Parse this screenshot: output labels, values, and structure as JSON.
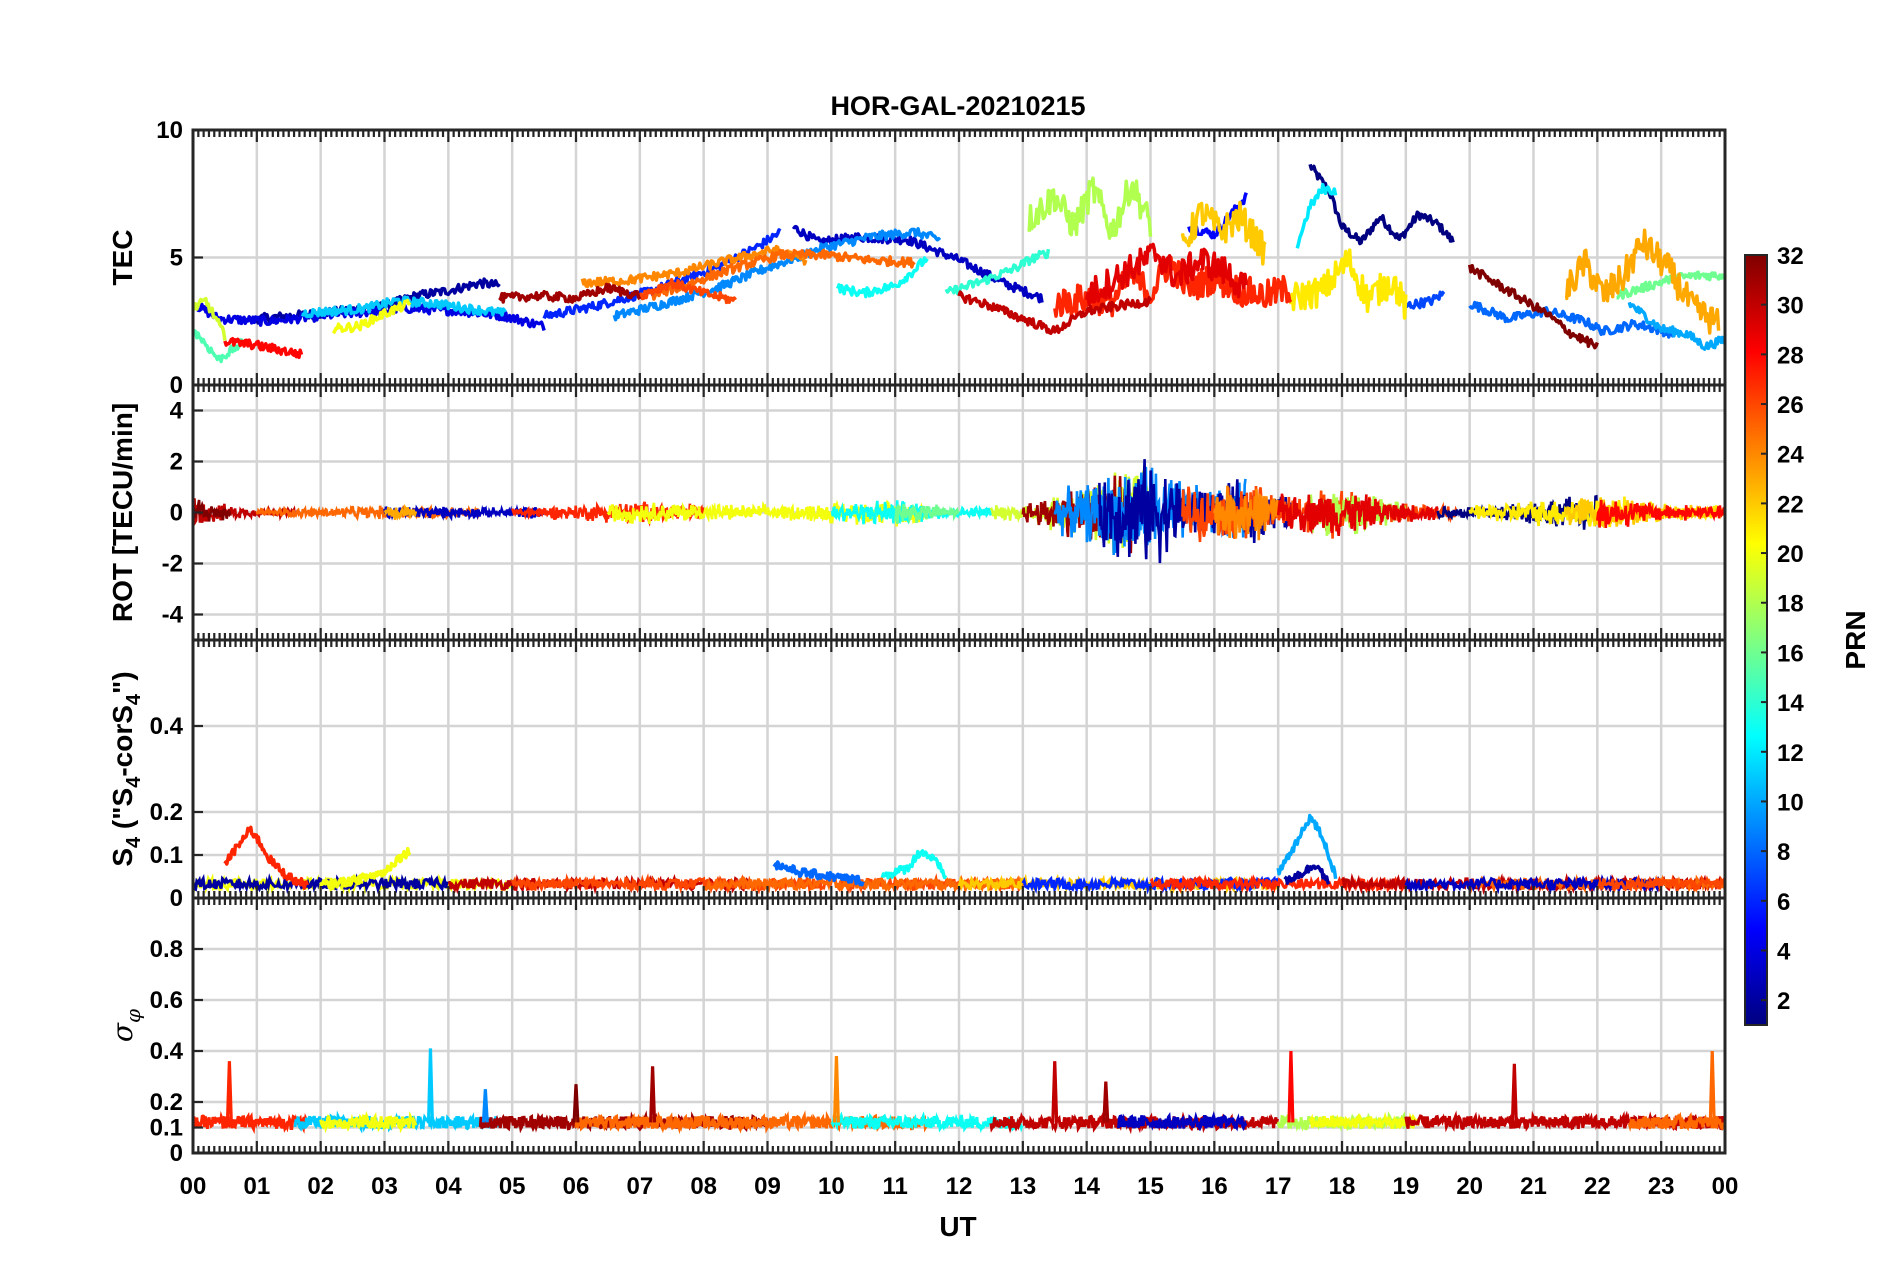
{
  "title": "HOR-GAL-20210215",
  "x_axis": {
    "label": "UT",
    "tick_labels": [
      "00",
      "01",
      "02",
      "03",
      "04",
      "05",
      "06",
      "07",
      "08",
      "09",
      "10",
      "11",
      "12",
      "13",
      "14",
      "15",
      "16",
      "17",
      "18",
      "19",
      "20",
      "21",
      "22",
      "23",
      "00"
    ],
    "range_hours": [
      0,
      24
    ]
  },
  "colorbar": {
    "label": "PRN",
    "range": [
      1,
      32
    ],
    "tick_labels": [
      "2",
      "4",
      "6",
      "8",
      "10",
      "12",
      "14",
      "16",
      "18",
      "20",
      "22",
      "24",
      "26",
      "28",
      "30",
      "32"
    ],
    "colormap": "jet",
    "colors": [
      "#00008f",
      "#0000ff",
      "#0080ff",
      "#00ffff",
      "#80ff80",
      "#ffff00",
      "#ff8000",
      "#ff0000",
      "#800000"
    ]
  },
  "panels": [
    {
      "id": "tec",
      "ylabel": "TEC",
      "ylim": [
        0,
        10
      ],
      "tick_labels": [
        "0",
        "5",
        "10"
      ]
    },
    {
      "id": "rot",
      "ylabel": "ROT [TECU/min]",
      "ylim": [
        -5,
        5
      ],
      "tick_labels": [
        "-4",
        "-2",
        "0",
        "2",
        "4"
      ]
    },
    {
      "id": "s4",
      "ylabel": "S4 (\"S4-corS4\")",
      "ylabel_parts": {
        "main": "S",
        "sub": "4",
        "paren": " (\"S",
        "sub2": "4",
        "mid": "-corS",
        "sub3": "4",
        "end": "\")"
      },
      "ylim": [
        0,
        0.6
      ],
      "tick_labels": [
        "0",
        "0.1",
        "0.2",
        "0.4"
      ]
    },
    {
      "id": "sigphi",
      "ylabel": "σφ",
      "ylabel_parts": {
        "main": "σ",
        "sub": "φ"
      },
      "ylim": [
        0,
        1
      ],
      "tick_labels": [
        "0",
        "0.1",
        "0.2",
        "0.4",
        "0.6",
        "0.8"
      ]
    }
  ],
  "chart_data": [
    {
      "type": "line",
      "title": "HOR-GAL-20210215",
      "xlabel": "UT",
      "ylabel": "TEC",
      "xlim": [
        0,
        24
      ],
      "ylim": [
        0,
        10
      ],
      "grid": true,
      "series": [
        {
          "prn": 1,
          "x": [
            17.5,
            17.8,
            18.0,
            18.3,
            18.6,
            18.9,
            19.2,
            19.5,
            19.75
          ],
          "y": [
            8.6,
            7.6,
            6.2,
            5.6,
            6.6,
            5.7,
            6.7,
            6.3,
            5.6
          ]
        },
        {
          "prn": 2,
          "x": [
            1.0,
            2.0,
            3.0,
            3.5,
            4.0,
            4.5,
            4.8
          ],
          "y": [
            2.6,
            2.8,
            3.1,
            3.5,
            3.7,
            4.0,
            3.9
          ]
        },
        {
          "prn": 3,
          "x": [
            9.4,
            9.8,
            10.4,
            11.2,
            12.0,
            12.7,
            13.3
          ],
          "y": [
            6.2,
            5.6,
            5.8,
            5.7,
            4.9,
            4.0,
            3.4
          ]
        },
        {
          "prn": 4,
          "x": [
            0.0,
            0.4,
            1.2,
            2.4,
            3.4,
            4.2,
            4.9,
            5.5
          ],
          "y": [
            3.2,
            2.6,
            2.5,
            2.8,
            3.0,
            2.9,
            2.7,
            2.3
          ]
        },
        {
          "prn": 5,
          "x": [
            15.6,
            16.0,
            16.3,
            16.5
          ],
          "y": [
            6.2,
            5.9,
            6.8,
            7.4
          ]
        },
        {
          "prn": 6,
          "x": [
            5.5,
            6.3,
            7.2,
            8.2,
            8.9,
            9.2
          ],
          "y": [
            2.7,
            3.1,
            3.7,
            4.6,
            5.5,
            6.0
          ]
        },
        {
          "prn": 7,
          "x": [
            19.0,
            19.4,
            19.6
          ],
          "y": [
            3.1,
            3.3,
            3.6
          ]
        },
        {
          "prn": 8,
          "x": [
            20.0,
            20.6,
            21.2,
            21.8,
            22.1,
            22.6,
            23.2
          ],
          "y": [
            3.2,
            2.6,
            2.9,
            2.5,
            2.1,
            2.4,
            2.0
          ]
        },
        {
          "prn": 9,
          "x": [
            6.6,
            7.4,
            8.2,
            9.0,
            9.9,
            10.6,
            11.3,
            11.7
          ],
          "y": [
            2.7,
            3.2,
            3.8,
            4.6,
            5.4,
            5.8,
            6.0,
            5.7
          ]
        },
        {
          "prn": 10,
          "x": [
            22.5,
            23.0,
            23.4,
            23.7,
            24.0
          ],
          "y": [
            3.2,
            2.2,
            2.0,
            1.5,
            1.8
          ]
        },
        {
          "prn": 11,
          "x": [
            1.7,
            2.2,
            2.7,
            3.2,
            3.8,
            4.3,
            4.9
          ],
          "y": [
            2.8,
            2.9,
            3.0,
            3.3,
            3.2,
            3.0,
            2.8
          ]
        },
        {
          "prn": 12,
          "x": [
            17.3,
            17.5,
            17.7,
            17.9
          ],
          "y": [
            5.5,
            7.0,
            7.7,
            7.6
          ]
        },
        {
          "prn": 13,
          "x": [
            10.1,
            10.5,
            11.0,
            11.3,
            11.5
          ],
          "y": [
            3.8,
            3.6,
            3.9,
            4.5,
            5.0
          ]
        },
        {
          "prn": 14,
          "x": [
            11.8,
            12.4,
            12.9,
            13.1,
            13.4
          ],
          "y": [
            3.6,
            4.1,
            4.6,
            4.9,
            5.2
          ]
        },
        {
          "prn": 15,
          "x": [
            0.0,
            0.2,
            0.4,
            0.8
          ],
          "y": [
            2.2,
            1.6,
            1.0,
            1.7
          ]
        },
        {
          "prn": 16,
          "x": [
            22.3,
            22.7,
            23.2,
            23.6,
            24.0
          ],
          "y": [
            3.5,
            3.8,
            4.2,
            4.3,
            4.3
          ]
        },
        {
          "prn": 18,
          "x": [
            13.1,
            13.5,
            13.8,
            14.1,
            14.4,
            14.7,
            15.0
          ],
          "y": [
            6.5,
            7.4,
            6.2,
            7.7,
            6.0,
            7.9,
            6.3
          ]
        },
        {
          "prn": 19,
          "x": [
            0.0,
            0.2,
            0.4,
            0.5
          ],
          "y": [
            3.0,
            3.3,
            2.4,
            1.9
          ]
        },
        {
          "prn": 20,
          "x": [
            2.2,
            2.6,
            3.0,
            3.4
          ],
          "y": [
            2.2,
            2.3,
            2.8,
            3.2
          ]
        },
        {
          "prn": 21,
          "x": [
            17.2,
            17.7,
            18.1,
            18.4,
            18.8,
            19.0
          ],
          "y": [
            3.4,
            3.7,
            4.9,
            3.4,
            4.1,
            3.0
          ]
        },
        {
          "prn": 22,
          "x": [
            15.5,
            15.8,
            16.1,
            16.4,
            16.8
          ],
          "y": [
            5.4,
            6.8,
            6.0,
            6.6,
            5.2
          ]
        },
        {
          "prn": 23,
          "x": [
            21.5,
            21.8,
            22.1,
            22.4,
            22.7,
            23.1,
            23.5,
            23.9
          ],
          "y": [
            3.6,
            4.8,
            3.5,
            4.2,
            5.6,
            4.6,
            3.0,
            2.4
          ]
        },
        {
          "prn": 24,
          "x": [
            6.1,
            6.8,
            7.6,
            8.4,
            9.1,
            9.6
          ],
          "y": [
            4.0,
            4.1,
            4.4,
            4.9,
            5.3,
            4.9
          ]
        },
        {
          "prn": 25,
          "x": [
            7.2,
            7.8,
            8.5,
            9.2,
            9.9,
            10.6,
            11.3
          ],
          "y": [
            3.5,
            4.0,
            4.6,
            5.1,
            5.1,
            4.9,
            4.8
          ]
        },
        {
          "prn": 26,
          "x": [
            7.0,
            7.5,
            8.0,
            8.5
          ],
          "y": [
            3.5,
            4.0,
            3.6,
            3.3
          ]
        },
        {
          "prn": 27,
          "x": [
            13.5,
            14.0,
            14.4,
            14.7,
            15.0,
            15.3,
            15.6,
            16.0,
            16.4,
            16.8,
            17.2
          ],
          "y": [
            3.2,
            3.4,
            3.3,
            4.3,
            3.6,
            4.8,
            3.8,
            4.2,
            3.7,
            3.5,
            3.8
          ]
        },
        {
          "prn": 28,
          "x": [
            0.5,
            0.9,
            1.3,
            1.7
          ],
          "y": [
            1.7,
            1.6,
            1.4,
            1.2
          ]
        },
        {
          "prn": 29,
          "x": [
            14.0,
            14.4,
            14.8,
            15.1,
            15.4,
            15.8,
            16.2,
            16.5
          ],
          "y": [
            3.5,
            4.1,
            4.7,
            5.2,
            4.2,
            4.9,
            4.4,
            3.7
          ]
        },
        {
          "prn": 30,
          "x": [
            12.0,
            12.5,
            13.0,
            13.5,
            14.0,
            14.5,
            15.0
          ],
          "y": [
            3.5,
            3.1,
            2.6,
            2.1,
            2.9,
            3.1,
            3.3
          ]
        },
        {
          "prn": 31,
          "x": [
            4.8,
            5.4,
            6.0,
            6.5,
            7.0
          ],
          "y": [
            3.4,
            3.5,
            3.4,
            3.8,
            3.5
          ]
        },
        {
          "prn": 32,
          "x": [
            20.0,
            20.4,
            20.8,
            21.2,
            21.6,
            22.0
          ],
          "y": [
            4.6,
            4.0,
            3.4,
            2.8,
            2.0,
            1.5
          ]
        }
      ]
    },
    {
      "type": "line",
      "xlabel": "UT",
      "ylabel": "ROT [TECU/min]",
      "xlim": [
        0,
        24
      ],
      "ylim": [
        -5,
        5
      ],
      "grid": true,
      "description": "ROT fluctuations near 0 for most of the day; strong fluctuations between 13 and 17 UT",
      "envelope": {
        "x": [
          0,
          0.2,
          1,
          3,
          5,
          7,
          9,
          11,
          12,
          13,
          13.5,
          14,
          14.5,
          15,
          15.5,
          16,
          16.5,
          17,
          17.5,
          18,
          18.5,
          19,
          20,
          22,
          23,
          24
        ],
        "max_abs": [
          0.8,
          0.5,
          0.15,
          0.3,
          0.2,
          0.5,
          0.3,
          0.6,
          0.2,
          0.4,
          0.9,
          1.3,
          2.0,
          2.4,
          1.4,
          1.0,
          1.5,
          0.8,
          0.9,
          1.1,
          0.7,
          0.4,
          0.3,
          0.8,
          0.4,
          0.3
        ]
      }
    },
    {
      "type": "line",
      "xlabel": "UT",
      "ylabel": "S4 (\"S4-corS4\")",
      "xlim": [
        0,
        24
      ],
      "ylim": [
        0,
        0.6
      ],
      "grid": true,
      "series": [
        {
          "prn": 27,
          "x": [
            0.5,
            0.7,
            0.9,
            1.0,
            1.2,
            1.4,
            1.6,
            1.8
          ],
          "y": [
            0.08,
            0.12,
            0.16,
            0.14,
            0.09,
            0.06,
            0.04,
            0.03
          ]
        },
        {
          "prn": 20,
          "x": [
            2.0,
            2.5,
            3.0,
            3.2,
            3.4
          ],
          "y": [
            0.03,
            0.04,
            0.06,
            0.09,
            0.11
          ]
        },
        {
          "prn": 8,
          "x": [
            9.1,
            9.5,
            10.0,
            10.5
          ],
          "y": [
            0.08,
            0.06,
            0.05,
            0.04
          ]
        },
        {
          "prn": 13,
          "x": [
            10.8,
            11.2,
            11.4,
            11.6,
            11.8
          ],
          "y": [
            0.05,
            0.07,
            0.11,
            0.09,
            0.05
          ]
        },
        {
          "prn": 10,
          "x": [
            17.0,
            17.3,
            17.5,
            17.7,
            17.9
          ],
          "y": [
            0.06,
            0.13,
            0.19,
            0.14,
            0.05
          ]
        },
        {
          "prn": 2,
          "x": [
            17.1,
            17.4,
            17.6,
            17.8
          ],
          "y": [
            0.04,
            0.06,
            0.08,
            0.03
          ]
        }
      ],
      "baseline": 0.02
    },
    {
      "type": "line",
      "xlabel": "UT",
      "ylabel": "σφ",
      "xlim": [
        0,
        24
      ],
      "ylim": [
        0,
        1
      ],
      "grid": true,
      "baseline": 0.12,
      "spikes": [
        {
          "x": 0.57,
          "y": 0.36,
          "prn": 27
        },
        {
          "x": 3.72,
          "y": 0.41,
          "prn": 11
        },
        {
          "x": 4.58,
          "y": 0.25,
          "prn": 9
        },
        {
          "x": 6.0,
          "y": 0.27,
          "prn": 32
        },
        {
          "x": 7.2,
          "y": 0.34,
          "prn": 31
        },
        {
          "x": 10.08,
          "y": 0.38,
          "prn": 24
        },
        {
          "x": 13.5,
          "y": 0.36,
          "prn": 30
        },
        {
          "x": 14.3,
          "y": 0.28,
          "prn": 31
        },
        {
          "x": 17.2,
          "y": 0.4,
          "prn": 28
        },
        {
          "x": 20.7,
          "y": 0.35,
          "prn": 30
        },
        {
          "x": 23.8,
          "y": 0.4,
          "prn": 25
        }
      ]
    }
  ]
}
